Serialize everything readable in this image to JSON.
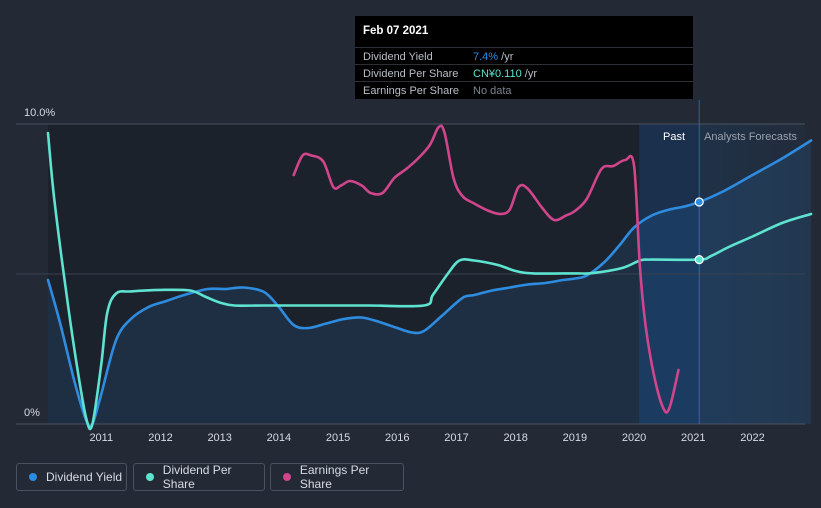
{
  "chart_data": {
    "type": "line",
    "y_axis": {
      "labels": [
        "10.0%",
        "0%"
      ],
      "ylim": [
        0,
        10
      ]
    },
    "x_axis": {
      "ticks": [
        "2011",
        "2012",
        "2013",
        "2014",
        "2015",
        "2016",
        "2017",
        "2018",
        "2019",
        "2020",
        "2021",
        "2022"
      ],
      "xlim": [
        2010.1,
        2022.99
      ]
    },
    "regions": {
      "past_label": "Past",
      "forecast_label": "Analysts Forecasts",
      "divider_x": 2021.1
    },
    "series": [
      {
        "name": "Dividend Yield",
        "color": "#2e8ce0",
        "unit": "%",
        "points": [
          [
            2010.1,
            4.8
          ],
          [
            2010.3,
            3.4
          ],
          [
            2010.55,
            1.4
          ],
          [
            2010.75,
            0.1
          ],
          [
            2010.85,
            0
          ],
          [
            2011.0,
            1.0
          ],
          [
            2011.25,
            2.8
          ],
          [
            2011.5,
            3.5
          ],
          [
            2011.8,
            3.9
          ],
          [
            2012.1,
            4.1
          ],
          [
            2012.4,
            4.3
          ],
          [
            2012.8,
            4.5
          ],
          [
            2013.1,
            4.5
          ],
          [
            2013.4,
            4.55
          ],
          [
            2013.75,
            4.4
          ],
          [
            2014.0,
            3.9
          ],
          [
            2014.25,
            3.3
          ],
          [
            2014.5,
            3.2
          ],
          [
            2014.8,
            3.35
          ],
          [
            2015.1,
            3.5
          ],
          [
            2015.4,
            3.55
          ],
          [
            2015.7,
            3.4
          ],
          [
            2016.0,
            3.2
          ],
          [
            2016.25,
            3.05
          ],
          [
            2016.45,
            3.1
          ],
          [
            2016.75,
            3.6
          ],
          [
            2017.1,
            4.2
          ],
          [
            2017.3,
            4.3
          ],
          [
            2017.6,
            4.45
          ],
          [
            2017.9,
            4.55
          ],
          [
            2018.2,
            4.65
          ],
          [
            2018.5,
            4.7
          ],
          [
            2018.8,
            4.8
          ],
          [
            2019.0,
            4.85
          ],
          [
            2019.2,
            4.95
          ],
          [
            2019.5,
            5.4
          ],
          [
            2019.75,
            5.95
          ],
          [
            2020.0,
            6.55
          ],
          [
            2020.3,
            6.95
          ],
          [
            2020.6,
            7.15
          ],
          [
            2020.85,
            7.25
          ],
          [
            2021.1,
            7.4
          ],
          [
            2021.5,
            7.75
          ],
          [
            2022.0,
            8.3
          ],
          [
            2022.5,
            8.85
          ],
          [
            2022.99,
            9.45
          ]
        ]
      },
      {
        "name": "Dividend Per Share",
        "color": "#5ee3d0",
        "unit": "CN¥",
        "points": [
          [
            2010.1,
            9.7
          ],
          [
            2010.2,
            7.6
          ],
          [
            2010.4,
            4.5
          ],
          [
            2010.6,
            1.8
          ],
          [
            2010.75,
            0.15
          ],
          [
            2010.85,
            0
          ],
          [
            2011.0,
            2.0
          ],
          [
            2011.1,
            3.7
          ],
          [
            2011.25,
            4.35
          ],
          [
            2011.5,
            4.42
          ],
          [
            2012.0,
            4.47
          ],
          [
            2012.5,
            4.45
          ],
          [
            2012.75,
            4.25
          ],
          [
            2013.0,
            4.05
          ],
          [
            2013.25,
            3.95
          ],
          [
            2013.75,
            3.95
          ],
          [
            2014.5,
            3.95
          ],
          [
            2015.5,
            3.95
          ],
          [
            2016.45,
            3.95
          ],
          [
            2016.6,
            4.3
          ],
          [
            2016.85,
            5.0
          ],
          [
            2017.05,
            5.45
          ],
          [
            2017.3,
            5.45
          ],
          [
            2017.7,
            5.3
          ],
          [
            2018.0,
            5.1
          ],
          [
            2018.3,
            5.02
          ],
          [
            2019.0,
            5.02
          ],
          [
            2019.3,
            5.03
          ],
          [
            2019.8,
            5.2
          ],
          [
            2020.1,
            5.45
          ],
          [
            2020.3,
            5.48
          ],
          [
            2021.1,
            5.48
          ],
          [
            2021.3,
            5.6
          ],
          [
            2021.6,
            5.9
          ],
          [
            2022.0,
            6.25
          ],
          [
            2022.5,
            6.7
          ],
          [
            2022.99,
            7.0
          ]
        ]
      },
      {
        "name": "Earnings Per Share",
        "color": "#d0458b",
        "unit": "CN¥",
        "points": [
          [
            2014.25,
            8.3
          ],
          [
            2014.4,
            8.95
          ],
          [
            2014.55,
            8.95
          ],
          [
            2014.75,
            8.75
          ],
          [
            2014.92,
            7.9
          ],
          [
            2015.05,
            7.95
          ],
          [
            2015.2,
            8.1
          ],
          [
            2015.4,
            7.95
          ],
          [
            2015.55,
            7.7
          ],
          [
            2015.75,
            7.7
          ],
          [
            2015.95,
            8.2
          ],
          [
            2016.15,
            8.5
          ],
          [
            2016.35,
            8.85
          ],
          [
            2016.55,
            9.3
          ],
          [
            2016.7,
            9.9
          ],
          [
            2016.8,
            9.7
          ],
          [
            2016.95,
            8.2
          ],
          [
            2017.1,
            7.6
          ],
          [
            2017.3,
            7.35
          ],
          [
            2017.55,
            7.1
          ],
          [
            2017.75,
            7.0
          ],
          [
            2017.9,
            7.15
          ],
          [
            2018.05,
            7.9
          ],
          [
            2018.2,
            7.85
          ],
          [
            2018.45,
            7.2
          ],
          [
            2018.65,
            6.8
          ],
          [
            2018.85,
            6.95
          ],
          [
            2019.0,
            7.1
          ],
          [
            2019.2,
            7.5
          ],
          [
            2019.45,
            8.5
          ],
          [
            2019.65,
            8.6
          ],
          [
            2019.85,
            8.8
          ],
          [
            2020.0,
            8.6
          ],
          [
            2020.1,
            5.2
          ],
          [
            2020.2,
            3.2
          ],
          [
            2020.35,
            1.5
          ],
          [
            2020.5,
            0.5
          ],
          [
            2020.6,
            0.55
          ],
          [
            2020.75,
            1.8
          ]
        ]
      }
    ]
  },
  "tooltip": {
    "date": "Feb 07 2021",
    "rows": [
      {
        "label": "Dividend Yield",
        "value": "7.4%",
        "unit": " /yr",
        "color": "#2e8ce0"
      },
      {
        "label": "Dividend Per Share",
        "value": "CN¥0.110",
        "unit": " /yr",
        "color": "#5ee3d0"
      },
      {
        "label": "Earnings Per Share",
        "value": "No data",
        "unit": "",
        "color": "#7c8390"
      }
    ]
  },
  "legend": [
    {
      "label": "Dividend Yield",
      "color": "#2e8ce0"
    },
    {
      "label": "Dividend Per Share",
      "color": "#5ee3d0"
    },
    {
      "label": "Earnings Per Share",
      "color": "#d0458b"
    }
  ]
}
